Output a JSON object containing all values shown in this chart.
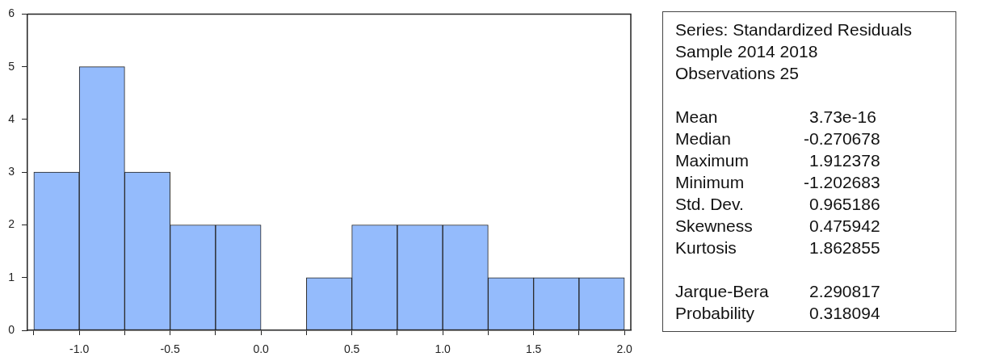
{
  "chart_data": [
    {
      "type": "histogram",
      "bins": [
        -1.25,
        -1.0,
        -0.75,
        -0.5,
        -0.25,
        0.0,
        0.25,
        0.5,
        0.75,
        1.0,
        1.25,
        1.5,
        1.75,
        2.0
      ],
      "values": [
        3,
        5,
        3,
        2,
        2,
        0,
        1,
        2,
        2,
        2,
        1,
        1,
        1
      ],
      "color": "#94bbfc",
      "xlim": [
        -1.285,
        2.035
      ],
      "xticks": [
        {
          "value": -1.25,
          "label": null
        },
        {
          "value": -1,
          "label": "-1.0"
        },
        {
          "value": -0.75,
          "label": null
        },
        {
          "value": -0.5,
          "label": "-0.5"
        },
        {
          "value": -0.25,
          "label": null
        },
        {
          "value": 0,
          "label": "0.0"
        },
        {
          "value": 0.25,
          "label": null
        },
        {
          "value": 0.5,
          "label": "0.5"
        },
        {
          "value": 0.75,
          "label": null
        },
        {
          "value": 1,
          "label": "1.0"
        },
        {
          "value": 1.25,
          "label": null
        },
        {
          "value": 1.5,
          "label": "1.5"
        },
        {
          "value": 1.75,
          "label": null
        },
        {
          "value": 2,
          "label": "2.0"
        }
      ],
      "ylim": [
        0,
        6
      ],
      "yticks": [
        0,
        1,
        2,
        3,
        4,
        5,
        6
      ]
    },
    {
      "type": "other",
      "title": "Series: Standardized Residuals",
      "annotations": [
        "Sample 2014 2018",
        "Observations 25"
      ],
      "categories": [
        "Mean",
        "Median",
        "Maximum",
        "Minimum",
        "Std. Dev.",
        "Skewness",
        "Kurtosis",
        "Jarque-Bera",
        "Probability"
      ],
      "values": [
        3.73e-16,
        -0.270678,
        1.912378,
        -1.202683,
        0.965186,
        0.475942,
        1.862855,
        2.290817,
        0.318094
      ],
      "data_labels": true
    }
  ]
}
